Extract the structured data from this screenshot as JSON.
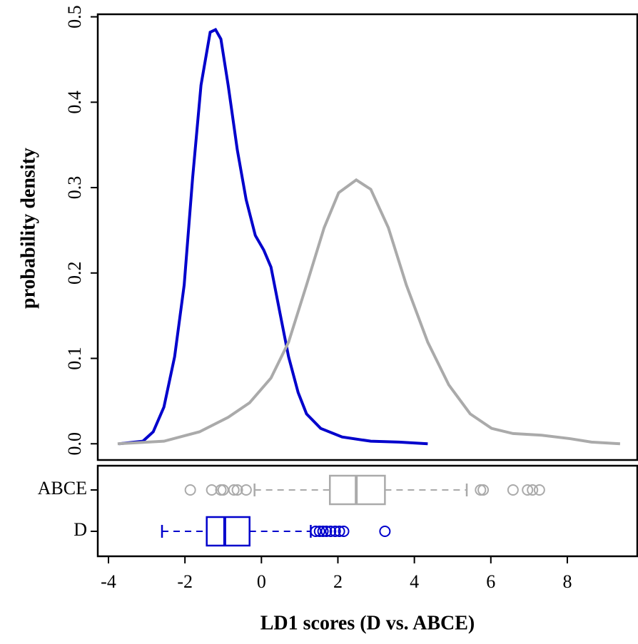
{
  "chart_data": [
    {
      "type": "line",
      "ylabel": "probability density",
      "xlim": [
        -4.28,
        9.83
      ],
      "ylim": [
        -0.019,
        0.503
      ],
      "yticks": [
        {
          "value": 0,
          "label": "0.0"
        },
        0.1,
        0.2,
        0.3,
        0.4,
        0.5
      ],
      "series": [
        {
          "color": "#0000cc",
          "x": [
            -3.72,
            -3.1,
            -2.83,
            -2.55,
            -2.27,
            -2.02,
            -1.8,
            -1.58,
            -1.34,
            -1.2,
            -1.06,
            -0.87,
            -0.63,
            -0.4,
            -0.16,
            0.06,
            0.25,
            0.49,
            0.71,
            0.96,
            1.18,
            1.55,
            2.11,
            2.86,
            3.6,
            4.35
          ],
          "values": [
            0,
            0.003,
            0.014,
            0.043,
            0.102,
            0.186,
            0.311,
            0.42,
            0.482,
            0.485,
            0.474,
            0.42,
            0.344,
            0.286,
            0.244,
            0.227,
            0.207,
            0.152,
            0.102,
            0.06,
            0.035,
            0.018,
            0.008,
            0.003,
            0.002,
            0
          ]
        },
        {
          "color": "#aaaaaa",
          "x": [
            -3.76,
            -2.55,
            -1.62,
            -0.87,
            -0.31,
            0.25,
            0.71,
            1.18,
            1.64,
            2.02,
            2.48,
            2.86,
            3.32,
            3.79,
            4.35,
            4.9,
            5.46,
            6.02,
            6.58,
            7.33,
            8.07,
            8.63,
            9.38
          ],
          "values": [
            0,
            0.003,
            0.014,
            0.031,
            0.048,
            0.077,
            0.119,
            0.186,
            0.253,
            0.294,
            0.309,
            0.298,
            0.253,
            0.186,
            0.119,
            0.069,
            0.035,
            0.018,
            0.012,
            0.01,
            0.006,
            0.002,
            0
          ]
        }
      ]
    },
    {
      "type": "box",
      "xlabel": "LD1 scores (D vs. ABCE)",
      "xlim": [
        -4.28,
        9.83
      ],
      "xticks": [
        -4,
        -2,
        0,
        2,
        4,
        6,
        8
      ],
      "categories": [
        "ABCE",
        "D"
      ],
      "boxes": [
        {
          "color": "#aaaaaa",
          "whislo": -0.18,
          "q1": 1.79,
          "med": 2.48,
          "q3": 3.23,
          "whishi": 5.37,
          "fliers": [
            -1.86,
            -1.3,
            -1.06,
            -1.0,
            -0.72,
            -0.63,
            -0.4,
            5.73,
            5.8,
            6.58,
            6.96,
            7.09,
            7.27
          ]
        },
        {
          "color": "#0000cc",
          "whislo": -2.6,
          "q1": -1.43,
          "med": -0.96,
          "q3": -0.31,
          "whishi": 1.29,
          "fliers": [
            1.42,
            1.52,
            1.61,
            1.7,
            1.81,
            1.93,
            2.04,
            2.15,
            3.23
          ]
        }
      ]
    }
  ]
}
